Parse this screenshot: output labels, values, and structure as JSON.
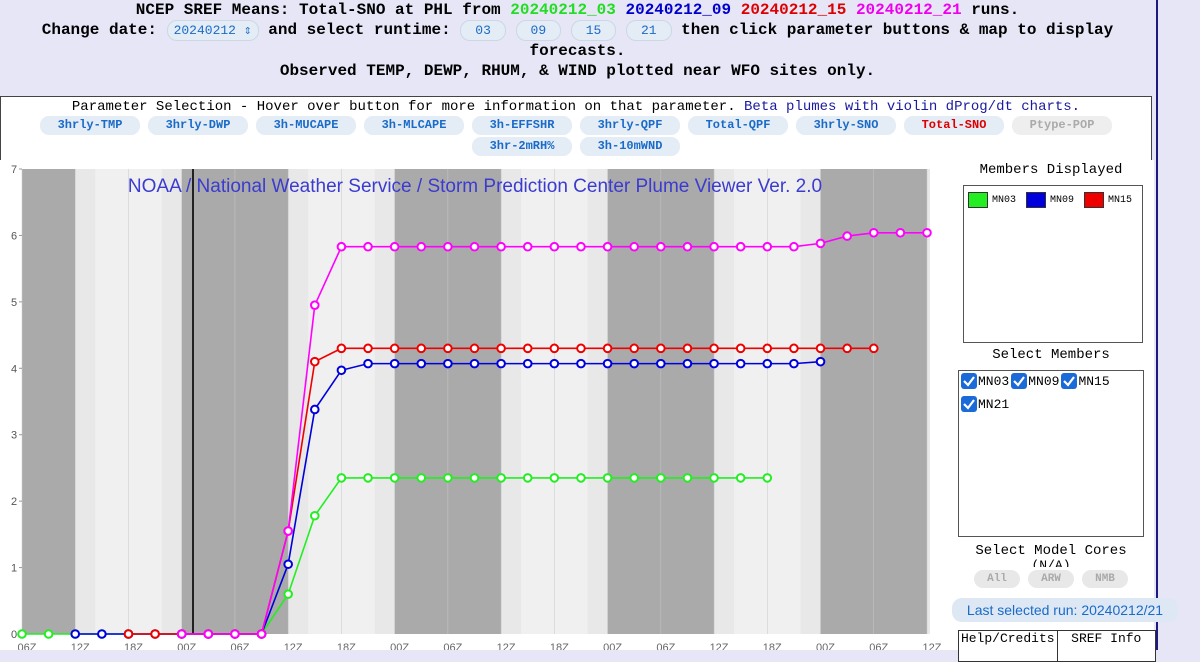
{
  "header": {
    "title_prefix": "NCEP SREF Means: Total-SNO at PHL from",
    "runs": [
      {
        "text": "20240212_03",
        "color": "#22dd22"
      },
      {
        "text": "20240212_09",
        "color": "#0000cc"
      },
      {
        "text": "20240212_15",
        "color": "#dd0000"
      },
      {
        "text": "20240212_21",
        "color": "#ee00ee"
      }
    ],
    "title_suffix": "runs.",
    "date_label": "Change date:",
    "date_value": "20240212",
    "runtime_label": "and select runtime:",
    "runtimes": [
      "03",
      "09",
      "15",
      "21"
    ],
    "instructions": "then click parameter buttons & map to display forecasts.",
    "note": "Observed TEMP, DEWP, RHUM, & WIND plotted near WFO sites only."
  },
  "parameters": {
    "heading": "Parameter Selection - Hover over button for more information on that parameter.",
    "beta_link": "Beta plumes with violin dProg/dt charts.",
    "buttons": [
      "3hrly-TMP",
      "3hrly-DWP",
      "3h-MUCAPE",
      "3h-MLCAPE",
      "3h-EFFSHR",
      "3hrly-QPF",
      "Total-QPF",
      "3hrly-SNO",
      "Total-SNO",
      "Ptype-POP",
      "3hr-2mRH%",
      "3h-10mWND"
    ]
  },
  "chart_data": {
    "type": "line",
    "title": "NOAA / National Weather Service / Storm Prediction Center Plume Viewer Ver. 2.0",
    "xlim": [
      0,
      102
    ],
    "ylim": [
      0,
      7
    ],
    "yticks": [
      0,
      1,
      2,
      3,
      4,
      5,
      6,
      7
    ],
    "xticks": [
      {
        "value": 0,
        "label": "06Z"
      },
      {
        "value": 6,
        "label": "12Z"
      },
      {
        "value": 12,
        "label": "18Z"
      },
      {
        "value": 18,
        "label": "00Z"
      },
      {
        "value": 24,
        "label": "06Z"
      },
      {
        "value": 30,
        "label": "12Z"
      },
      {
        "value": 36,
        "label": "18Z"
      },
      {
        "value": 42,
        "label": "00Z"
      },
      {
        "value": 48,
        "label": "06Z"
      },
      {
        "value": 54,
        "label": "12Z"
      },
      {
        "value": 60,
        "label": "18Z"
      },
      {
        "value": 66,
        "label": "00Z"
      },
      {
        "value": 72,
        "label": "06Z"
      },
      {
        "value": 78,
        "label": "12Z"
      },
      {
        "value": 84,
        "label": "18Z"
      },
      {
        "value": 90,
        "label": "00Z"
      },
      {
        "value": 96,
        "label": "06Z"
      },
      {
        "value": 102,
        "label": "12Z"
      }
    ],
    "series": [
      {
        "name": "MN03",
        "color": "#22ee22",
        "x": [
          0,
          3,
          6,
          9,
          12,
          15,
          18,
          21,
          24,
          27,
          30,
          33,
          36,
          39,
          42,
          45,
          48,
          51,
          54,
          57,
          60,
          63,
          66,
          69,
          72,
          75,
          78,
          81,
          84
        ],
        "values": [
          0,
          0,
          0,
          0,
          0,
          0,
          0,
          0,
          0,
          0,
          0.6,
          1.78,
          2.35,
          2.35,
          2.35,
          2.35,
          2.35,
          2.35,
          2.35,
          2.35,
          2.35,
          2.35,
          2.35,
          2.35,
          2.35,
          2.35,
          2.35,
          2.35,
          2.35
        ]
      },
      {
        "name": "MN09",
        "color": "#0000dd",
        "x": [
          6,
          9,
          12,
          15,
          18,
          21,
          24,
          27,
          30,
          33,
          36,
          39,
          42,
          45,
          48,
          51,
          54,
          57,
          60,
          63,
          66,
          69,
          72,
          75,
          78,
          81,
          84,
          87,
          90
        ],
        "values": [
          0,
          0,
          0,
          0,
          0,
          0,
          0,
          0,
          1.05,
          3.38,
          3.97,
          4.07,
          4.07,
          4.07,
          4.07,
          4.07,
          4.07,
          4.07,
          4.07,
          4.07,
          4.07,
          4.07,
          4.07,
          4.07,
          4.07,
          4.07,
          4.07,
          4.07,
          4.1
        ]
      },
      {
        "name": "MN15",
        "color": "#ee0000",
        "x": [
          12,
          15,
          18,
          21,
          24,
          27,
          30,
          33,
          36,
          39,
          42,
          45,
          48,
          51,
          54,
          57,
          60,
          63,
          66,
          69,
          72,
          75,
          78,
          81,
          84,
          87,
          90,
          93,
          96
        ],
        "values": [
          0,
          0,
          0,
          0,
          0,
          0,
          1.55,
          4.1,
          4.3,
          4.3,
          4.3,
          4.3,
          4.3,
          4.3,
          4.3,
          4.3,
          4.3,
          4.3,
          4.3,
          4.3,
          4.3,
          4.3,
          4.3,
          4.3,
          4.3,
          4.3,
          4.3,
          4.3,
          4.3
        ]
      },
      {
        "name": "MN21",
        "color": "#ff00ff",
        "x": [
          18,
          21,
          24,
          27,
          30,
          33,
          36,
          39,
          42,
          45,
          48,
          51,
          54,
          57,
          60,
          63,
          66,
          69,
          72,
          75,
          78,
          81,
          84,
          87,
          90,
          93,
          96,
          99,
          102
        ],
        "values": [
          0,
          0,
          0,
          0,
          1.55,
          4.95,
          5.83,
          5.83,
          5.83,
          5.83,
          5.83,
          5.83,
          5.83,
          5.83,
          5.83,
          5.83,
          5.83,
          5.83,
          5.83,
          5.83,
          5.83,
          5.83,
          5.83,
          5.83,
          5.88,
          5.99,
          6.04,
          6.04,
          6.04
        ]
      }
    ]
  },
  "side_panel": {
    "members_heading": "Members Displayed",
    "select_heading": "Select Members",
    "cores_heading": "Select Model Cores",
    "cores_note": "(N/A)",
    "cores": [
      "All",
      "ARW",
      "NMB"
    ],
    "last_run": "Last selected run: 20240212/21",
    "links": [
      "Help/Credits",
      "SREF Info"
    ]
  }
}
